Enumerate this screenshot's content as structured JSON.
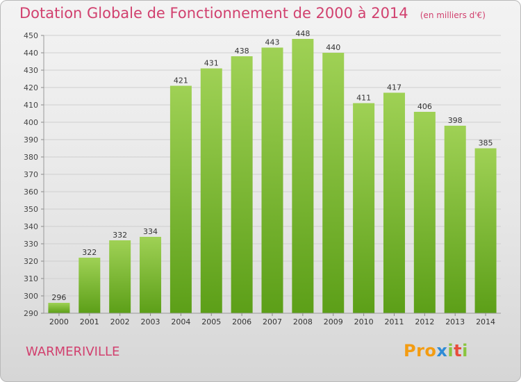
{
  "title": "Dotation Globale de Fonctionnement de 2000 à 2014",
  "subtitle": "(en milliers d'€)",
  "commune": "WARMERIVILLE",
  "logo": "Proxiti",
  "colors": {
    "bar_light": "#9fd155",
    "bar_dark": "#5c9f18",
    "title": "#d1406e"
  },
  "chart_data": {
    "type": "bar",
    "title": "Dotation Globale de Fonctionnement de 2000 à 2014",
    "subtitle": "(en milliers d'€)",
    "xlabel": "",
    "ylabel": "",
    "ylim": [
      290,
      450
    ],
    "yticks": [
      290,
      300,
      310,
      320,
      330,
      340,
      350,
      360,
      370,
      380,
      390,
      400,
      410,
      420,
      430,
      440,
      450
    ],
    "grid": true,
    "categories": [
      "2000",
      "2001",
      "2002",
      "2003",
      "2004",
      "2005",
      "2006",
      "2007",
      "2008",
      "2009",
      "2010",
      "2011",
      "2012",
      "2013",
      "2014"
    ],
    "values": [
      296,
      322,
      332,
      334,
      421,
      431,
      438,
      443,
      448,
      440,
      411,
      417,
      406,
      398,
      385
    ]
  }
}
